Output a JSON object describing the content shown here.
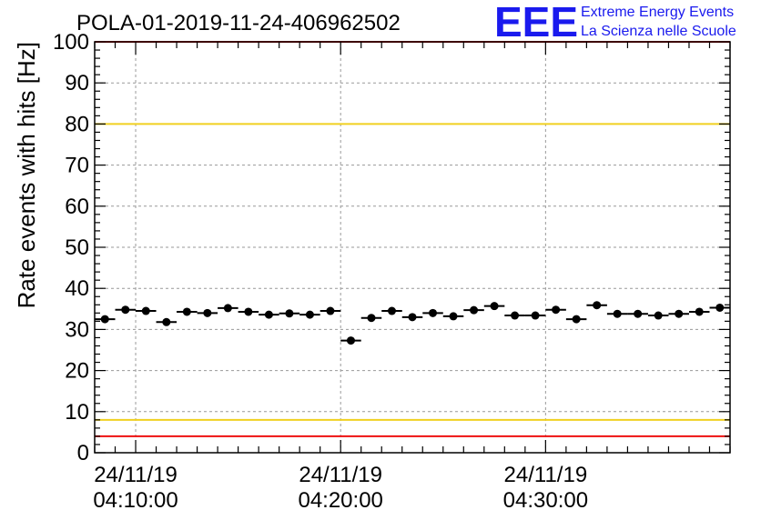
{
  "chart_data": {
    "type": "scatter",
    "title": "POLA-01-2019-11-24-406962502",
    "ylabel": "Rate events with hits [Hz]",
    "xlabel": "",
    "ylim": [
      0,
      100
    ],
    "yticks": [
      0,
      10,
      20,
      30,
      40,
      50,
      60,
      70,
      80,
      90,
      100
    ],
    "xticks": [
      {
        "date": "24/11/19",
        "time": "04:10:00"
      },
      {
        "date": "24/11/19",
        "time": "04:20:00"
      },
      {
        "date": "24/11/19",
        "time": "04:30:00"
      }
    ],
    "grid": true,
    "bin_width_minutes": 1,
    "series": [
      {
        "x": [
          "04:08:30",
          "04:09:30",
          "04:10:30",
          "04:11:30",
          "04:12:30",
          "04:13:30",
          "04:14:30",
          "04:15:30",
          "04:16:30",
          "04:17:30",
          "04:18:30",
          "04:19:30",
          "04:20:30",
          "04:21:30",
          "04:22:30",
          "04:23:30",
          "04:24:30",
          "04:25:30",
          "04:26:30",
          "04:27:30",
          "04:28:30",
          "04:29:30",
          "04:30:30",
          "04:31:30",
          "04:32:30",
          "04:33:30",
          "04:34:30",
          "04:35:30",
          "04:36:30",
          "04:37:30",
          "04:38:30"
        ],
        "values": [
          32.5,
          34.8,
          34.5,
          31.8,
          34.3,
          34.0,
          35.2,
          34.3,
          33.6,
          33.9,
          33.6,
          34.5,
          27.3,
          32.8,
          34.5,
          33.0,
          34.0,
          33.2,
          34.7,
          35.7,
          33.4,
          33.4,
          34.8,
          32.5,
          35.9,
          33.8,
          33.8,
          33.4,
          33.8,
          34.3,
          35.3
        ]
      }
    ],
    "reference_lines": [
      {
        "y": 80,
        "color": "#f0d020"
      },
      {
        "y": 8,
        "color": "#f0d020"
      },
      {
        "y": 100,
        "color": "#ee1111"
      },
      {
        "y": 4,
        "color": "#ee1111"
      }
    ]
  },
  "logo": {
    "mark": "EEE",
    "line1": "Extreme Energy Events",
    "line2": "La Scienza nelle Scuole",
    "color": "#1a1aee"
  }
}
